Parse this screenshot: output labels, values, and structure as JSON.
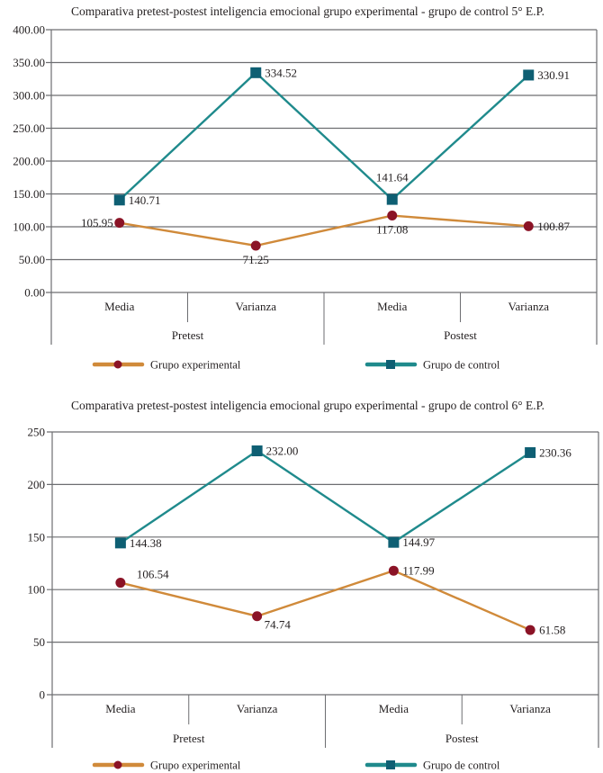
{
  "chart_data": [
    {
      "type": "line",
      "title": "Comparativa pretest-postest inteligencia emocional grupo experimental - grupo de control 5° E.P.",
      "xlabel": "",
      "ylabel": "",
      "categories": [
        "Media",
        "Varianza",
        "Media",
        "Varianza"
      ],
      "category_groups": [
        {
          "label": "Pretest",
          "span": 2
        },
        {
          "label": "Postest",
          "span": 2
        }
      ],
      "ylim": [
        0,
        400
      ],
      "yticks": [
        0,
        50,
        100,
        150,
        200,
        250,
        300,
        350,
        400
      ],
      "ytick_labels": [
        "0.00",
        "50.00",
        "100.00",
        "150.00",
        "200.00",
        "250.00",
        "300.00",
        "350.00",
        "400.00"
      ],
      "grid": true,
      "legend_position": "bottom",
      "series": [
        {
          "name": "Grupo experimental",
          "values": [
            105.95,
            71.25,
            117.08,
            100.87
          ],
          "labels": [
            "105.95",
            "71.25",
            "117.08",
            "100.87"
          ],
          "label_positions": [
            "left",
            "below",
            "below",
            "right"
          ],
          "line_color": "#d08a3a",
          "marker_color": "#8b1326",
          "marker": "circle"
        },
        {
          "name": "Grupo de control",
          "values": [
            140.71,
            334.52,
            141.64,
            330.91
          ],
          "labels": [
            "140.71",
            "334.52",
            "141.64",
            "330.91"
          ],
          "label_positions": [
            "right",
            "right",
            "above",
            "right"
          ],
          "line_color": "#1f8a8c",
          "marker_color": "#0e5f73",
          "marker": "square"
        }
      ]
    },
    {
      "type": "line",
      "title": "Comparativa pretest-postest inteligencia emocional grupo experimental - grupo de control 6° E.P.",
      "xlabel": "",
      "ylabel": "",
      "categories": [
        "Media",
        "Varianza",
        "Media",
        "Varianza"
      ],
      "category_groups": [
        {
          "label": "Pretest",
          "span": 2
        },
        {
          "label": "Postest",
          "span": 2
        }
      ],
      "ylim": [
        0,
        250
      ],
      "yticks": [
        0,
        50,
        100,
        150,
        200,
        250
      ],
      "ytick_labels": [
        "0",
        "50",
        "100",
        "150",
        "200",
        "250"
      ],
      "grid": true,
      "legend_position": "bottom",
      "series": [
        {
          "name": "Grupo experimental",
          "values": [
            106.54,
            74.74,
            117.99,
            61.58
          ],
          "labels": [
            "106.54",
            "74.74",
            "117.99",
            "61.58"
          ],
          "label_positions": [
            "above-right",
            "below-right",
            "right",
            "right"
          ],
          "line_color": "#d08a3a",
          "marker_color": "#8b1326",
          "marker": "circle"
        },
        {
          "name": "Grupo de control",
          "values": [
            144.38,
            232.0,
            144.97,
            230.36
          ],
          "labels": [
            "144.38",
            "232.00",
            "144.97",
            "230.36"
          ],
          "label_positions": [
            "right",
            "right",
            "right",
            "right"
          ],
          "line_color": "#1f8a8c",
          "marker_color": "#0e5f73",
          "marker": "square"
        }
      ]
    }
  ]
}
